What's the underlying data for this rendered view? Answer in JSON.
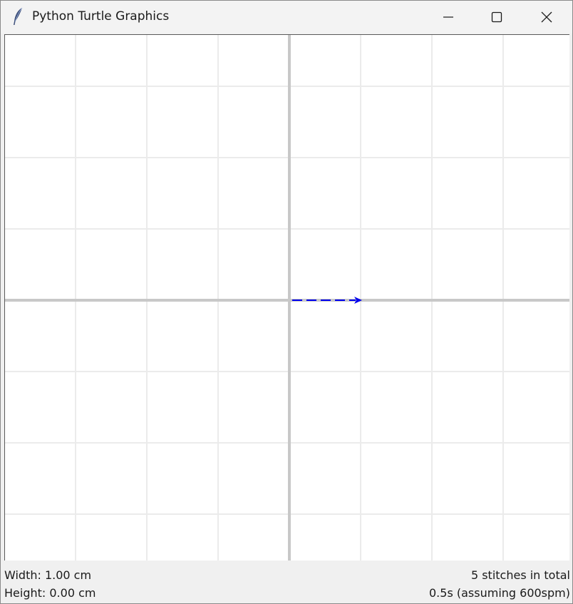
{
  "window": {
    "title": "Python Turtle Graphics",
    "icon": "feather-icon"
  },
  "controls": {
    "minimize_icon": "minimize-icon",
    "maximize_icon": "maximize-icon",
    "close_icon": "close-icon"
  },
  "canvas": {
    "background": "#ffffff",
    "grid_color": "#ebebeb",
    "axis_color": "#c8c8c8",
    "path_color": "#0000ee",
    "path_style": "dashed",
    "arrow_heading": "right"
  },
  "status": {
    "width_text": "Width: 1.00 cm",
    "height_text": "Height: 0.00 cm",
    "stitches_text": "5 stitches in total",
    "time_text": "0.5s (assuming 600spm)"
  }
}
